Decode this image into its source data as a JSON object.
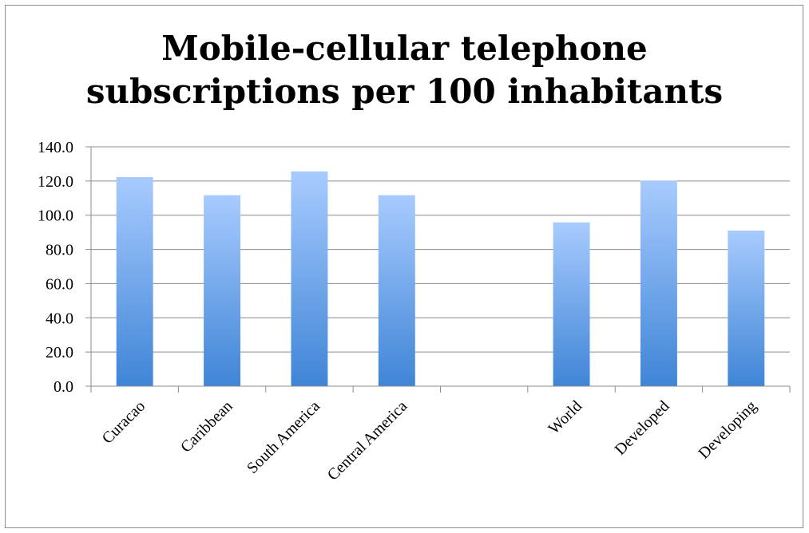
{
  "chart_data": {
    "type": "bar",
    "title_lines": [
      "Mobile-cellular telephone",
      "subscriptions per 100 inhabitants"
    ],
    "categories": [
      "Curacao",
      "Caribbean",
      "South America",
      "Central America",
      "",
      "World",
      "Developed",
      "Developing"
    ],
    "values": [
      122.3,
      111.7,
      125.6,
      111.7,
      null,
      95.8,
      120.2,
      91.0
    ],
    "ylim": [
      0,
      140
    ],
    "yticks": [
      "0.0",
      "20.0",
      "40.0",
      "60.0",
      "80.0",
      "100.0",
      "120.0",
      "140.0"
    ],
    "xlabel": "",
    "ylabel": "",
    "grid": true,
    "legend": "none",
    "colors": {
      "bar_top": "#a8cbff",
      "bar_bottom": "#3f85d6",
      "gridline": "#8c8c8c",
      "axis": "#8c8c8c"
    }
  }
}
